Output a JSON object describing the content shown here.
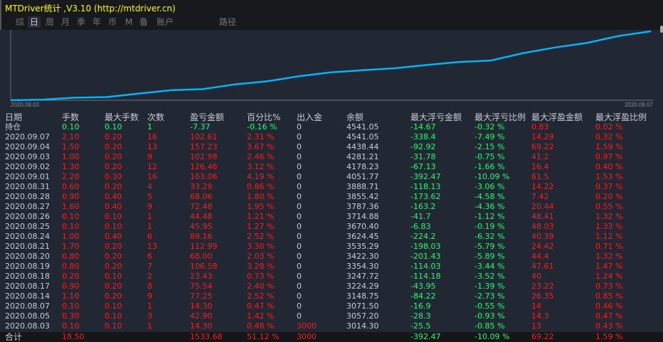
{
  "title": "MTDriver统计 ,V3.10 (http://mtdriver.cn)",
  "tabs": [
    "综",
    "日",
    "周",
    "月",
    "季",
    "年",
    "币",
    "M",
    "备",
    "账户",
    "路径"
  ],
  "active_tab": "日",
  "colors": {
    "background": "#222833",
    "profit": "#ff1a1a",
    "loss": "#1aff6a",
    "title": "#ffff00",
    "curve": "#00b4ff"
  },
  "chart": {
    "x_start": "2020.08.03",
    "x_end": "2020.09.07"
  },
  "columns": [
    "日期",
    "手数",
    "最大手数",
    "次数",
    "盈亏金额",
    "百分比%",
    "出入金",
    "余额",
    "最大浮亏金额",
    "最大浮亏比例",
    "最大浮盈金额",
    "最大浮盈比例"
  ],
  "holding": [
    "持仓",
    "0.10",
    "0.10",
    "1",
    "-7.37",
    "-0.16 %",
    "0",
    "4541.05",
    "-14.67",
    "-0.32 %",
    "0.83",
    "0.02 %"
  ],
  "rows": [
    [
      "2020.09.07",
      "2.10",
      "0.20",
      "16",
      "102.61",
      "2.31 %",
      "0",
      "4541.05",
      "-338.4",
      "-7.49 %",
      "14.29",
      "0.32 %"
    ],
    [
      "2020.09.04",
      "1.50",
      "0.20",
      "13",
      "157.23",
      "3.67 %",
      "0",
      "4438.44",
      "-92.92",
      "-2.15 %",
      "69.22",
      "1.59 %"
    ],
    [
      "2020.09.03",
      "1.00",
      "0.20",
      "9",
      "102.98",
      "2.46 %",
      "0",
      "4281.21",
      "-31.78",
      "-0.75 %",
      "41.2",
      "0.97 %"
    ],
    [
      "2020.09.02",
      "1.30",
      "0.20",
      "12",
      "126.46",
      "3.12 %",
      "0",
      "4178.23",
      "-67.13",
      "-1.66 %",
      "16.4",
      "0.40 %"
    ],
    [
      "2020.09.01",
      "2.20",
      "0.30",
      "16",
      "163.06",
      "4.19 %",
      "0",
      "4051.77",
      "-392.47",
      "-10.09 %",
      "61.5",
      "1.53 %"
    ],
    [
      "2020.08.31",
      "0.60",
      "0.20",
      "4",
      "33.29",
      "0.86 %",
      "0",
      "3888.71",
      "-118.13",
      "-3.06 %",
      "14.22",
      "0.37 %"
    ],
    [
      "2020.08.28",
      "0.90",
      "0.40",
      "5",
      "68.06",
      "1.80 %",
      "0",
      "3855.42",
      "-173.62",
      "-4.58 %",
      "7.42",
      "0.20 %"
    ],
    [
      "2020.08.27",
      "1.60",
      "0.40",
      "9",
      "72.48",
      "1.95 %",
      "0",
      "3787.36",
      "-163.2",
      "-4.36 %",
      "20.44",
      "0.55 %"
    ],
    [
      "2020.08.26",
      "0.10",
      "0.10",
      "1",
      "44.48",
      "1.21 %",
      "0",
      "3714.88",
      "-41.7",
      "-1.12 %",
      "48.41",
      "1.32 %"
    ],
    [
      "2020.08.25",
      "0.10",
      "0.10",
      "1",
      "45.95",
      "1.27 %",
      "0",
      "3670.40",
      "-6.83",
      "-0.19 %",
      "48.03",
      "1.33 %"
    ],
    [
      "2020.08.24",
      "1.00",
      "0.40",
      "6",
      "89.16",
      "2.52 %",
      "0",
      "3624.45",
      "-224.2",
      "-6.32 %",
      "40.39",
      "1.12 %"
    ],
    [
      "2020.08.21",
      "1.70",
      "0.20",
      "13",
      "112.99",
      "3.30 %",
      "0",
      "3535.29",
      "-198.03",
      "-5.79 %",
      "24.42",
      "0.71 %"
    ],
    [
      "2020.08.20",
      "0.80",
      "0.20",
      "6",
      "68.00",
      "2.03 %",
      "0",
      "3422.30",
      "-201.43",
      "-5.89 %",
      "44.4",
      "1.32 %"
    ],
    [
      "2020.08.19",
      "0.80",
      "0.20",
      "7",
      "106.58",
      "3.28 %",
      "0",
      "3354.30",
      "-114.03",
      "-3.44 %",
      "47.61",
      "1.47 %"
    ],
    [
      "2020.08.18",
      "0.20",
      "0.10",
      "2",
      "23.43",
      "0.73 %",
      "0",
      "3247.72",
      "-114.18",
      "-3.52 %",
      "40",
      "1.24 %"
    ],
    [
      "2020.08.17",
      "0.90",
      "0.20",
      "8",
      "75.54",
      "2.40 %",
      "0",
      "3224.29",
      "-43.95",
      "-1.39 %",
      "23.22",
      "0.73 %"
    ],
    [
      "2020.08.14",
      "1.10",
      "0.20",
      "9",
      "77.25",
      "2.52 %",
      "0",
      "3148.75",
      "-84.22",
      "-2.73 %",
      "26.35",
      "0.85 %"
    ],
    [
      "2020.08.07",
      "0.10",
      "0.10",
      "1",
      "14.30",
      "0.47 %",
      "0",
      "3071.50",
      "-16.9",
      "-0.55 %",
      "14",
      "0.46 %"
    ],
    [
      "2020.08.05",
      "0.30",
      "0.10",
      "3",
      "42.90",
      "1.42 %",
      "0",
      "3057.20",
      "-28.3",
      "-0.93 %",
      "14.3",
      "0.47 %"
    ],
    [
      "2020.08.03",
      "0.10",
      "0.10",
      "1",
      "14.30",
      "0.48 %",
      "3000",
      "3014.30",
      "-25.5",
      "-0.85 %",
      "13",
      "0.43 %"
    ]
  ],
  "total": [
    "合计",
    "18.50",
    "",
    "",
    "1533.68",
    "51.12 %",
    "3000",
    "",
    "-392.47",
    "-10.09 %",
    "69.22",
    "1.59 %"
  ]
}
